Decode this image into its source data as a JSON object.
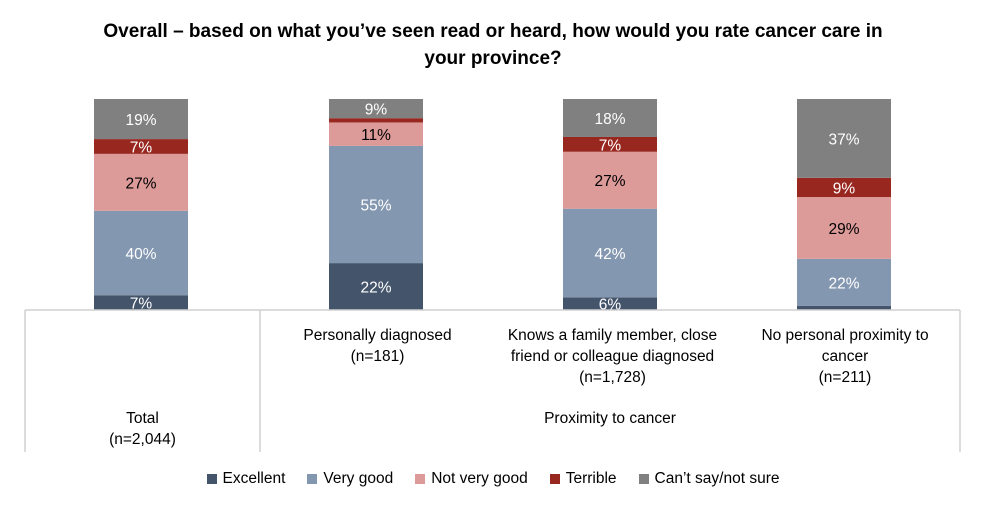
{
  "chart_data": {
    "type": "bar",
    "stacked": true,
    "title": "Overall – based on what you’ve seen read or heard, how would you rate cancer care in your province?",
    "categories": [
      {
        "lines": [
          "Total",
          "(n=2,044)"
        ]
      },
      {
        "lines": [
          "Personally diagnosed",
          "(n=181)"
        ]
      },
      {
        "lines": [
          "Knows a family member, close",
          "friend or colleague diagnosed",
          "(n=1,728)"
        ]
      },
      {
        "lines": [
          "No personal proximity to",
          "cancer",
          "(n=211)"
        ]
      }
    ],
    "group_label": "Proximity to cancer",
    "series": [
      {
        "name": "Excellent",
        "color": "#44546a",
        "label_color": "#ffffff",
        "values": [
          7,
          22,
          6,
          2
        ]
      },
      {
        "name": "Very good",
        "color": "#8497b0",
        "label_color": "#ffffff",
        "values": [
          40,
          55,
          42,
          22
        ]
      },
      {
        "name": "Not very good",
        "color": "#dc9a99",
        "label_color": "#000000",
        "values": [
          27,
          11,
          27,
          29
        ]
      },
      {
        "name": "Terrible",
        "color": "#98271f",
        "label_color": "#ffffff",
        "values": [
          7,
          2,
          7,
          9
        ]
      },
      {
        "name": "Can’t say/not sure",
        "color": "#808080",
        "label_color": "#ffffff",
        "values": [
          19,
          9,
          18,
          37
        ]
      }
    ],
    "labels": [
      [
        "7%",
        "40%",
        "27%",
        "7%",
        "19%"
      ],
      [
        "22%",
        "55%",
        "11%",
        "",
        "9%"
      ],
      [
        "6%",
        "42%",
        "27%",
        "7%",
        "18%"
      ],
      [
        "",
        "22%",
        "29%",
        "9%",
        "37%"
      ]
    ],
    "legend_position": "bottom"
  }
}
